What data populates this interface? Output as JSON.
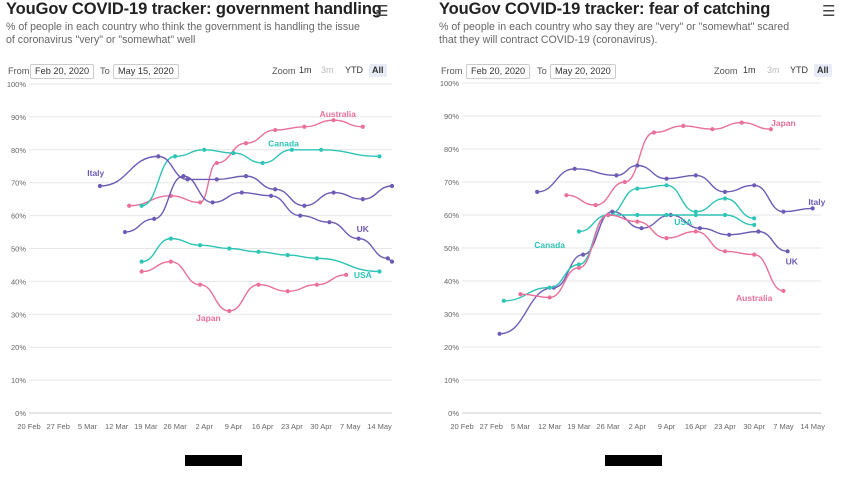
{
  "colors": {
    "australia": "#e8709a",
    "canada": "#2ec4b6",
    "italy": "#6e5bb5",
    "uk": "#6e5bb5",
    "japan": "#e8709a",
    "usa": "#2ec4b6",
    "grid": "#e6e6e6"
  },
  "icons": {
    "menu": "hamburger-menu-icon"
  },
  "controls": {
    "from_label": "From",
    "to_label": "To",
    "zoom_label": "Zoom",
    "zoom_options": [
      "1m",
      "3m",
      "YTD",
      "All"
    ],
    "zoom_selected": "All",
    "zoom_disabled": [
      "3m"
    ]
  },
  "charts": [
    {
      "title": "YouGov COVID-19 tracker: government handling",
      "subtitle_lines": [
        "% of people in each country who think the government is handling the issue",
        "of coronavirus \"very\" or \"somewhat\" well"
      ],
      "from_date": "Feb 20, 2020",
      "to_date": "May 15, 2020"
    },
    {
      "title": "YouGov COVID-19 tracker: fear of catching",
      "subtitle_lines": [
        "% of people in each country who say they are \"very\" or \"somewhat\" scared",
        "that they will contract COVID-19 (coronavirus)."
      ],
      "from_date": "Feb 20, 2020",
      "to_date": "May 20, 2020"
    }
  ],
  "chart_data": [
    {
      "type": "line",
      "title": "YouGov COVID-19 tracker: government handling",
      "ylim": [
        0,
        100
      ],
      "yticks": [
        "0%",
        "10%",
        "20%",
        "30%",
        "40%",
        "50%",
        "60%",
        "70%",
        "80%",
        "90%",
        "100%"
      ],
      "xlim": [
        "2020-02-20",
        "2020-05-17"
      ],
      "xticks": [
        "20 Feb",
        "27 Feb",
        "5 Mar",
        "12 Mar",
        "19 Mar",
        "26 Mar",
        "2 Apr",
        "9 Apr",
        "16 Apr",
        "23 Apr",
        "30 Apr",
        "7 May",
        "14 May"
      ],
      "grid": true,
      "series": [
        {
          "name": "Australia",
          "color_key": "australia",
          "x": [
            "2020-03-15",
            "2020-03-25",
            "2020-04-01",
            "2020-04-05",
            "2020-04-12",
            "2020-04-19",
            "2020-04-26",
            "2020-05-03",
            "2020-05-10"
          ],
          "y": [
            63,
            66,
            64,
            76,
            82,
            86,
            87,
            89,
            87
          ]
        },
        {
          "name": "Canada",
          "color_key": "canada",
          "x": [
            "2020-03-18",
            "2020-03-26",
            "2020-04-02",
            "2020-04-09",
            "2020-04-16",
            "2020-04-23",
            "2020-04-30",
            "2020-05-14"
          ],
          "y": [
            63,
            78,
            80,
            79,
            76,
            80,
            80,
            78
          ]
        },
        {
          "name": "Italy",
          "color_key": "italy",
          "x": [
            "2020-03-08",
            "2020-03-22",
            "2020-03-29",
            "2020-04-05",
            "2020-04-12",
            "2020-04-19",
            "2020-04-26",
            "2020-05-03",
            "2020-05-10",
            "2020-05-17"
          ],
          "y": [
            69,
            78,
            71,
            71,
            72,
            68,
            63,
            67,
            65,
            69
          ]
        },
        {
          "name": "UK",
          "color_key": "uk",
          "x": [
            "2020-03-14",
            "2020-03-21",
            "2020-03-28",
            "2020-04-04",
            "2020-04-11",
            "2020-04-18",
            "2020-04-25",
            "2020-05-02",
            "2020-05-09",
            "2020-05-16",
            "2020-05-17"
          ],
          "y": [
            55,
            59,
            72,
            64,
            67,
            66,
            60,
            58,
            53,
            47,
            46
          ]
        },
        {
          "name": "USA",
          "color_key": "usa",
          "x": [
            "2020-03-18",
            "2020-03-25",
            "2020-04-01",
            "2020-04-08",
            "2020-04-15",
            "2020-04-22",
            "2020-04-29",
            "2020-05-14"
          ],
          "y": [
            46,
            53,
            51,
            50,
            49,
            48,
            47,
            43
          ]
        },
        {
          "name": "Japan",
          "color_key": "japan",
          "x": [
            "2020-03-18",
            "2020-03-25",
            "2020-04-01",
            "2020-04-08",
            "2020-04-15",
            "2020-04-22",
            "2020-04-29",
            "2020-05-06"
          ],
          "y": [
            43,
            46,
            39,
            31,
            39,
            37,
            39,
            42
          ]
        }
      ],
      "annotations": [
        {
          "text": "Australia",
          "color_key": "australia",
          "x": "2020-05-04",
          "y": 90
        },
        {
          "text": "Canada",
          "color_key": "canada",
          "x": "2020-04-21",
          "y": 81
        },
        {
          "text": "Italy",
          "color_key": "italy",
          "x": "2020-03-07",
          "y": 72
        },
        {
          "text": "UK",
          "color_key": "uk",
          "x": "2020-05-10",
          "y": 55
        },
        {
          "text": "USA",
          "color_key": "usa",
          "x": "2020-05-10",
          "y": 41
        },
        {
          "text": "Japan",
          "color_key": "japan",
          "x": "2020-04-03",
          "y": 28
        }
      ]
    },
    {
      "type": "line",
      "title": "YouGov COVID-19 tracker: fear of catching",
      "ylim": [
        0,
        100
      ],
      "yticks": [
        "0%",
        "10%",
        "20%",
        "30%",
        "40%",
        "50%",
        "60%",
        "70%",
        "80%",
        "90%",
        "100%"
      ],
      "xlim": [
        "2020-02-20",
        "2020-05-16"
      ],
      "xticks": [
        "20 Feb",
        "27 Feb",
        "5 Mar",
        "12 Mar",
        "19 Mar",
        "26 Mar",
        "2 Apr",
        "9 Apr",
        "16 Apr",
        "23 Apr",
        "30 Apr",
        "7 May",
        "14 May"
      ],
      "grid": true,
      "series": [
        {
          "name": "Japan",
          "color_key": "japan",
          "x": [
            "2020-03-16",
            "2020-03-23",
            "2020-03-30",
            "2020-04-06",
            "2020-04-13",
            "2020-04-20",
            "2020-04-27",
            "2020-05-04"
          ],
          "y": [
            66,
            63,
            70,
            85,
            87,
            86,
            88,
            86
          ]
        },
        {
          "name": "Italy",
          "color_key": "italy",
          "x": [
            "2020-03-09",
            "2020-03-18",
            "2020-03-28",
            "2020-04-02",
            "2020-04-09",
            "2020-04-16",
            "2020-04-23",
            "2020-04-30",
            "2020-05-07",
            "2020-05-14"
          ],
          "y": [
            67,
            74,
            72,
            75,
            71,
            72,
            67,
            69,
            61,
            62
          ]
        },
        {
          "name": "UK",
          "color_key": "uk",
          "x": [
            "2020-02-29",
            "2020-03-13",
            "2020-03-20",
            "2020-03-27",
            "2020-04-03",
            "2020-04-10",
            "2020-04-17",
            "2020-04-24",
            "2020-05-01",
            "2020-05-08"
          ],
          "y": [
            24,
            38,
            48,
            61,
            56,
            60,
            56,
            54,
            55,
            49
          ]
        },
        {
          "name": "Canada",
          "color_key": "canada",
          "x": [
            "2020-03-19",
            "2020-03-26",
            "2020-04-02",
            "2020-04-09",
            "2020-04-16",
            "2020-04-23",
            "2020-04-30"
          ],
          "y": [
            55,
            60,
            68,
            69,
            61,
            65,
            59
          ]
        },
        {
          "name": "USA",
          "color_key": "usa",
          "x": [
            "2020-03-01",
            "2020-03-12",
            "2020-03-19",
            "2020-03-26",
            "2020-04-02",
            "2020-04-09",
            "2020-04-16",
            "2020-04-23",
            "2020-04-30"
          ],
          "y": [
            34,
            38,
            45,
            60,
            60,
            60,
            60,
            60,
            57
          ]
        },
        {
          "name": "Australia",
          "color_key": "australia",
          "x": [
            "2020-03-05",
            "2020-03-12",
            "2020-03-19",
            "2020-03-26",
            "2020-04-02",
            "2020-04-09",
            "2020-04-16",
            "2020-04-23",
            "2020-04-30",
            "2020-05-07"
          ],
          "y": [
            36,
            35,
            44,
            60,
            58,
            53,
            55,
            49,
            48,
            37
          ]
        }
      ],
      "annotations": [
        {
          "text": "Japan",
          "color_key": "japan",
          "x": "2020-05-07",
          "y": 87
        },
        {
          "text": "Italy",
          "color_key": "italy",
          "x": "2020-05-15",
          "y": 63
        },
        {
          "text": "Canada",
          "color_key": "canada",
          "x": "2020-03-12",
          "y": 50
        },
        {
          "text": "USA",
          "color_key": "usa",
          "x": "2020-04-13",
          "y": 57
        },
        {
          "text": "UK",
          "color_key": "uk",
          "x": "2020-05-09",
          "y": 45
        },
        {
          "text": "Australia",
          "color_key": "australia",
          "x": "2020-04-30",
          "y": 34
        }
      ]
    }
  ]
}
